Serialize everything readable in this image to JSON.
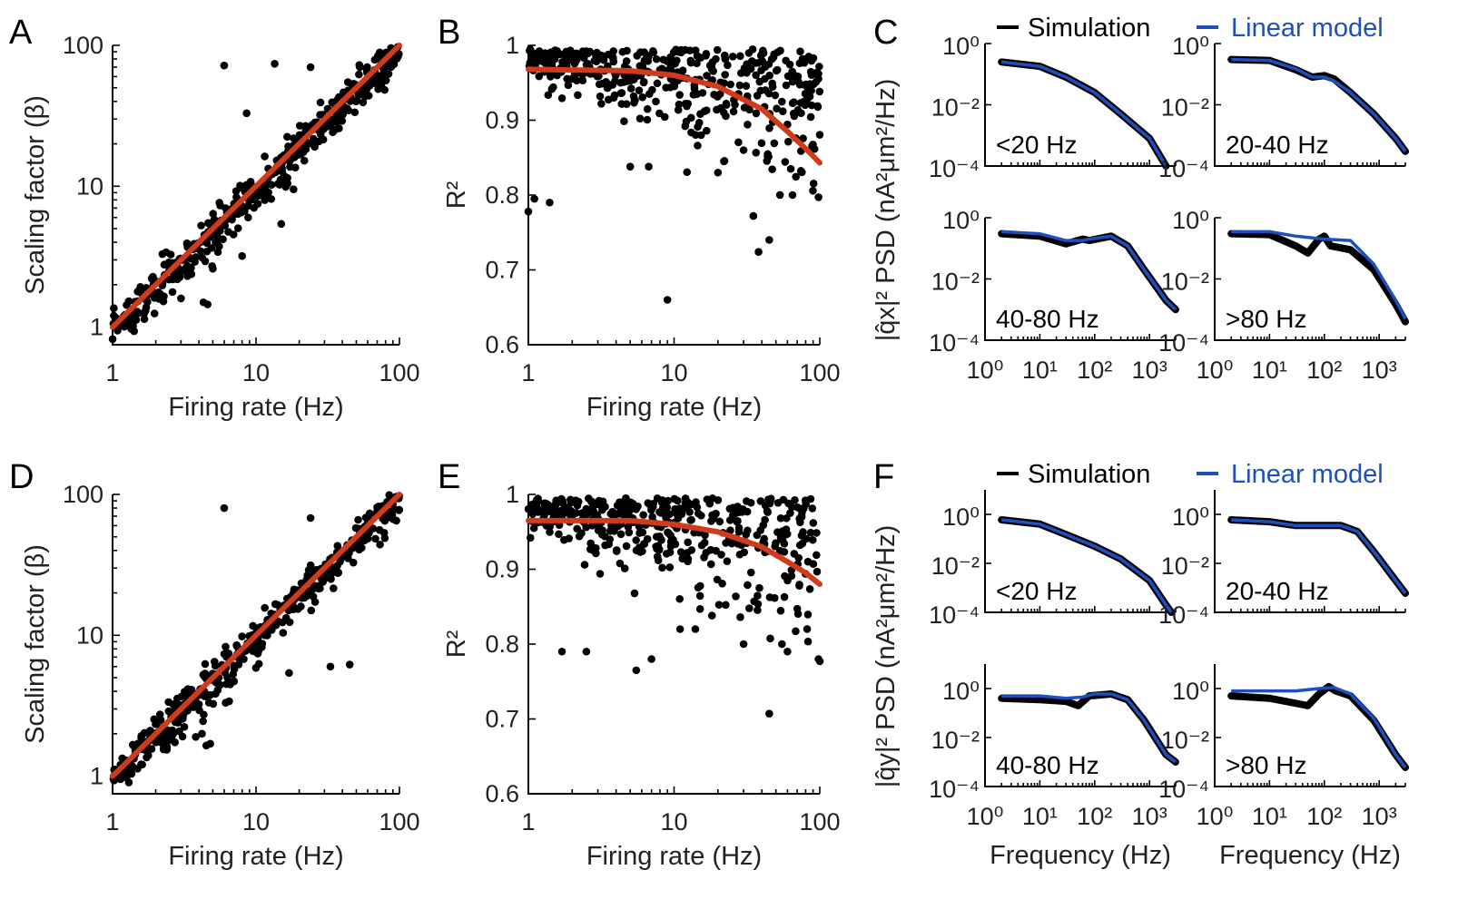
{
  "panel_labels": [
    "A",
    "B",
    "C",
    "D",
    "E",
    "F"
  ],
  "legend": {
    "simulation": "Simulation",
    "model": "Linear  model",
    "sim_color": "#000000",
    "model_color": "#1f4fbf"
  },
  "colors": {
    "fit": "#d13a1a",
    "points": "#000000"
  },
  "chart_data": [
    {
      "panel": "A",
      "type": "scatter",
      "xscale": "log",
      "yscale": "log",
      "xlabel": "Firing rate (Hz)",
      "ylabel": "Scaling factor (β)",
      "xlim": [
        1,
        100
      ],
      "ylim": [
        0.75,
        100
      ],
      "xticks": [
        1,
        10,
        100
      ],
      "yticks": [
        1,
        10,
        100
      ],
      "xticklabels": [
        "1",
        "10",
        "100"
      ],
      "yticklabels": [
        "1",
        "10",
        "100"
      ],
      "fit": {
        "type": "power",
        "a": 1.0,
        "b": 1.0,
        "color": "#d13a1a"
      },
      "points": [
        [
          6,
          72
        ],
        [
          13.5,
          74
        ],
        [
          24,
          70
        ],
        [
          8.6,
          33
        ],
        [
          4.3,
          1.5
        ],
        [
          4.6,
          1.45
        ],
        [
          3,
          1.6
        ],
        [
          5,
          2.6
        ],
        [
          8,
          3.2
        ],
        [
          15,
          5.4
        ]
      ]
    },
    {
      "panel": "B",
      "type": "scatter",
      "xscale": "log",
      "yscale": "linear",
      "xlabel": "Firing rate (Hz)",
      "ylabel": "R²",
      "xlim": [
        1,
        100
      ],
      "ylim": [
        0.6,
        1
      ],
      "xticks": [
        1,
        10,
        100
      ],
      "yticks": [
        0.6,
        0.7,
        0.8,
        0.9,
        1
      ],
      "xticklabels": [
        "1",
        "10",
        "100"
      ],
      "yticklabels": [
        "0.6",
        "0.7",
        "0.8",
        "0.9",
        "1"
      ],
      "fit": {
        "type": "curve",
        "color": "#d13a1a",
        "x": [
          1,
          5,
          10,
          20,
          40,
          60,
          80,
          100
        ],
        "y": [
          0.968,
          0.966,
          0.96,
          0.945,
          0.915,
          0.885,
          0.862,
          0.843
        ]
      },
      "points": [
        [
          9,
          0.66
        ],
        [
          1,
          0.778
        ],
        [
          1.1,
          0.795
        ],
        [
          1.4,
          0.79
        ],
        [
          35,
          0.772
        ],
        [
          38,
          0.724
        ],
        [
          45,
          0.74
        ],
        [
          65,
          0.8
        ],
        [
          98,
          0.797
        ],
        [
          20,
          0.83
        ],
        [
          22,
          0.845
        ],
        [
          5,
          0.838
        ],
        [
          6.7,
          0.838
        ],
        [
          30,
          0.86
        ]
      ]
    },
    {
      "panel": "C",
      "type": "line",
      "xscale": "log",
      "yscale": "log",
      "ylabel": "|q̂x|² PSD (nA²μm²/Hz)",
      "xlim": [
        1,
        3000
      ],
      "ylim": [
        0.0001,
        1
      ],
      "xticklabels": [
        "10⁰",
        "10¹",
        "10²",
        "10³"
      ],
      "yticklabels": [
        "10⁰",
        "10⁻²",
        "10⁻⁴"
      ],
      "series": [
        {
          "name": "Simulation"
        },
        {
          "name": "Linear  model"
        }
      ],
      "subplots": [
        {
          "label": "<20 Hz",
          "sim": [
            [
              2,
              0.25
            ],
            [
              10,
              0.18
            ],
            [
              30,
              0.08
            ],
            [
              100,
              0.025
            ],
            [
              300,
              0.005
            ],
            [
              1000,
              0.0008
            ],
            [
              2000,
              0.0001
            ]
          ],
          "model": [
            [
              2,
              0.25
            ],
            [
              10,
              0.18
            ],
            [
              30,
              0.08
            ],
            [
              100,
              0.025
            ],
            [
              300,
              0.005
            ],
            [
              1000,
              0.0008
            ],
            [
              2000,
              0.0001
            ]
          ]
        },
        {
          "label": "20-40 Hz",
          "sim": [
            [
              2,
              0.3
            ],
            [
              10,
              0.28
            ],
            [
              30,
              0.14
            ],
            [
              60,
              0.08
            ],
            [
              100,
              0.09
            ],
            [
              150,
              0.07
            ],
            [
              300,
              0.025
            ],
            [
              800,
              0.005
            ],
            [
              2000,
              0.0008
            ],
            [
              3000,
              0.0003
            ]
          ],
          "model": [
            [
              2,
              0.3
            ],
            [
              10,
              0.28
            ],
            [
              30,
              0.15
            ],
            [
              60,
              0.08
            ],
            [
              100,
              0.08
            ],
            [
              150,
              0.06
            ],
            [
              300,
              0.025
            ],
            [
              800,
              0.005
            ],
            [
              2000,
              0.0008
            ],
            [
              3000,
              0.0003
            ]
          ]
        },
        {
          "label": "40-80 Hz",
          "sim": [
            [
              2,
              0.3
            ],
            [
              10,
              0.25
            ],
            [
              30,
              0.14
            ],
            [
              60,
              0.2
            ],
            [
              80,
              0.18
            ],
            [
              200,
              0.25
            ],
            [
              400,
              0.12
            ],
            [
              800,
              0.02
            ],
            [
              2000,
              0.002
            ],
            [
              3000,
              0.001
            ]
          ],
          "model": [
            [
              2,
              0.35
            ],
            [
              10,
              0.3
            ],
            [
              30,
              0.18
            ],
            [
              60,
              0.18
            ],
            [
              80,
              0.2
            ],
            [
              200,
              0.25
            ],
            [
              400,
              0.12
            ],
            [
              800,
              0.02
            ],
            [
              2000,
              0.002
            ],
            [
              3000,
              0.001
            ]
          ]
        },
        {
          "label": ">80 Hz",
          "sim": [
            [
              2,
              0.3
            ],
            [
              10,
              0.28
            ],
            [
              30,
              0.12
            ],
            [
              50,
              0.07
            ],
            [
              80,
              0.2
            ],
            [
              100,
              0.25
            ],
            [
              130,
              0.12
            ],
            [
              300,
              0.09
            ],
            [
              800,
              0.02
            ],
            [
              2000,
              0.0015
            ],
            [
              3000,
              0.0004
            ]
          ],
          "model": [
            [
              2,
              0.35
            ],
            [
              10,
              0.35
            ],
            [
              30,
              0.25
            ],
            [
              100,
              0.2
            ],
            [
              300,
              0.18
            ],
            [
              800,
              0.03
            ],
            [
              2000,
              0.002
            ],
            [
              3000,
              0.0005
            ]
          ]
        }
      ]
    },
    {
      "panel": "D",
      "type": "scatter",
      "xscale": "log",
      "yscale": "log",
      "xlabel": "Firing rate (Hz)",
      "ylabel": "Scaling factor (β)",
      "xlim": [
        1,
        100
      ],
      "ylim": [
        0.75,
        100
      ],
      "xticks": [
        1,
        10,
        100
      ],
      "yticks": [
        1,
        10,
        100
      ],
      "xticklabels": [
        "1",
        "10",
        "100"
      ],
      "yticklabels": [
        "1",
        "10",
        "100"
      ],
      "fit": {
        "type": "power",
        "a": 1.0,
        "b": 1.0,
        "color": "#d13a1a"
      },
      "points": [
        [
          6,
          80
        ],
        [
          24,
          68
        ],
        [
          17,
          5.4
        ],
        [
          4.5,
          1.65
        ],
        [
          4.8,
          1.7
        ],
        [
          3.8,
          1.9
        ],
        [
          4.2,
          2
        ],
        [
          6.5,
          3.4
        ],
        [
          33,
          6
        ],
        [
          45,
          6.2
        ]
      ]
    },
    {
      "panel": "E",
      "type": "scatter",
      "xscale": "log",
      "yscale": "linear",
      "xlabel": "Firing rate (Hz)",
      "ylabel": "R²",
      "xlim": [
        1,
        100
      ],
      "ylim": [
        0.6,
        1
      ],
      "xticks": [
        1,
        10,
        100
      ],
      "yticks": [
        0.6,
        0.7,
        0.8,
        0.9,
        1
      ],
      "xticklabels": [
        "1",
        "10",
        "100"
      ],
      "yticklabels": [
        "0.6",
        "0.7",
        "0.8",
        "0.9",
        "1"
      ],
      "fit": {
        "type": "curve",
        "color": "#d13a1a",
        "x": [
          1,
          5,
          10,
          20,
          40,
          60,
          80,
          100
        ],
        "y": [
          0.965,
          0.965,
          0.96,
          0.95,
          0.93,
          0.91,
          0.895,
          0.88
        ]
      },
      "points": [
        [
          45,
          0.707
        ],
        [
          1.7,
          0.79
        ],
        [
          2.5,
          0.79
        ],
        [
          5.5,
          0.765
        ],
        [
          7,
          0.78
        ],
        [
          55,
          0.8
        ],
        [
          60,
          0.79
        ],
        [
          98,
          0.78
        ],
        [
          100,
          0.777
        ],
        [
          30,
          0.8
        ],
        [
          11,
          0.82
        ],
        [
          14,
          0.82
        ]
      ]
    },
    {
      "panel": "F",
      "type": "line",
      "xscale": "log",
      "yscale": "log",
      "xlabel": "Frequency (Hz)",
      "ylabel": "|q̂y|² PSD (nA²μm²/Hz)",
      "xlim": [
        1,
        3000
      ],
      "ylim": [
        0.0001,
        10
      ],
      "xticklabels": [
        "10⁰",
        "10¹",
        "10²",
        "10³"
      ],
      "yticklabels": [
        "10⁰",
        "10⁻²",
        "10⁻⁴"
      ],
      "series": [
        {
          "name": "Simulation"
        },
        {
          "name": "Linear  model"
        }
      ],
      "subplots": [
        {
          "label": "<20 Hz",
          "sim": [
            [
              2,
              0.6
            ],
            [
              10,
              0.4
            ],
            [
              30,
              0.15
            ],
            [
              100,
              0.05
            ],
            [
              300,
              0.015
            ],
            [
              1000,
              0.002
            ],
            [
              2000,
              0.0002
            ],
            [
              2500,
              0.0001
            ]
          ],
          "model": [
            [
              2,
              0.6
            ],
            [
              10,
              0.4
            ],
            [
              30,
              0.15
            ],
            [
              100,
              0.05
            ],
            [
              300,
              0.015
            ],
            [
              1000,
              0.002
            ],
            [
              2000,
              0.0002
            ],
            [
              2500,
              0.0001
            ]
          ]
        },
        {
          "label": "20-40 Hz",
          "sim": [
            [
              2,
              0.6
            ],
            [
              10,
              0.5
            ],
            [
              30,
              0.35
            ],
            [
              100,
              0.35
            ],
            [
              200,
              0.35
            ],
            [
              400,
              0.2
            ],
            [
              800,
              0.03
            ],
            [
              2000,
              0.002
            ],
            [
              3000,
              0.0006
            ]
          ],
          "model": [
            [
              2,
              0.6
            ],
            [
              10,
              0.5
            ],
            [
              30,
              0.35
            ],
            [
              100,
              0.35
            ],
            [
              200,
              0.35
            ],
            [
              400,
              0.2
            ],
            [
              800,
              0.03
            ],
            [
              2000,
              0.002
            ],
            [
              3000,
              0.0006
            ]
          ]
        },
        {
          "label": "40-80 Hz",
          "sim": [
            [
              2,
              0.4
            ],
            [
              10,
              0.35
            ],
            [
              30,
              0.3
            ],
            [
              50,
              0.2
            ],
            [
              80,
              0.5
            ],
            [
              200,
              0.6
            ],
            [
              400,
              0.35
            ],
            [
              800,
              0.05
            ],
            [
              2000,
              0.002
            ],
            [
              3000,
              0.001
            ]
          ],
          "model": [
            [
              2,
              0.5
            ],
            [
              10,
              0.5
            ],
            [
              30,
              0.4
            ],
            [
              60,
              0.45
            ],
            [
              100,
              0.6
            ],
            [
              200,
              0.6
            ],
            [
              400,
              0.35
            ],
            [
              800,
              0.05
            ],
            [
              2000,
              0.002
            ],
            [
              3000,
              0.001
            ]
          ]
        },
        {
          "label": ">80 Hz",
          "sim": [
            [
              2,
              0.5
            ],
            [
              10,
              0.4
            ],
            [
              30,
              0.25
            ],
            [
              50,
              0.2
            ],
            [
              80,
              0.6
            ],
            [
              120,
              1.2
            ],
            [
              160,
              0.8
            ],
            [
              300,
              0.5
            ],
            [
              800,
              0.05
            ],
            [
              2000,
              0.002
            ],
            [
              3000,
              0.0006
            ]
          ],
          "model": [
            [
              2,
              0.8
            ],
            [
              10,
              0.8
            ],
            [
              30,
              0.8
            ],
            [
              80,
              1.0
            ],
            [
              150,
              1.1
            ],
            [
              300,
              0.6
            ],
            [
              800,
              0.06
            ],
            [
              2000,
              0.002
            ],
            [
              3000,
              0.0006
            ]
          ]
        }
      ]
    }
  ]
}
